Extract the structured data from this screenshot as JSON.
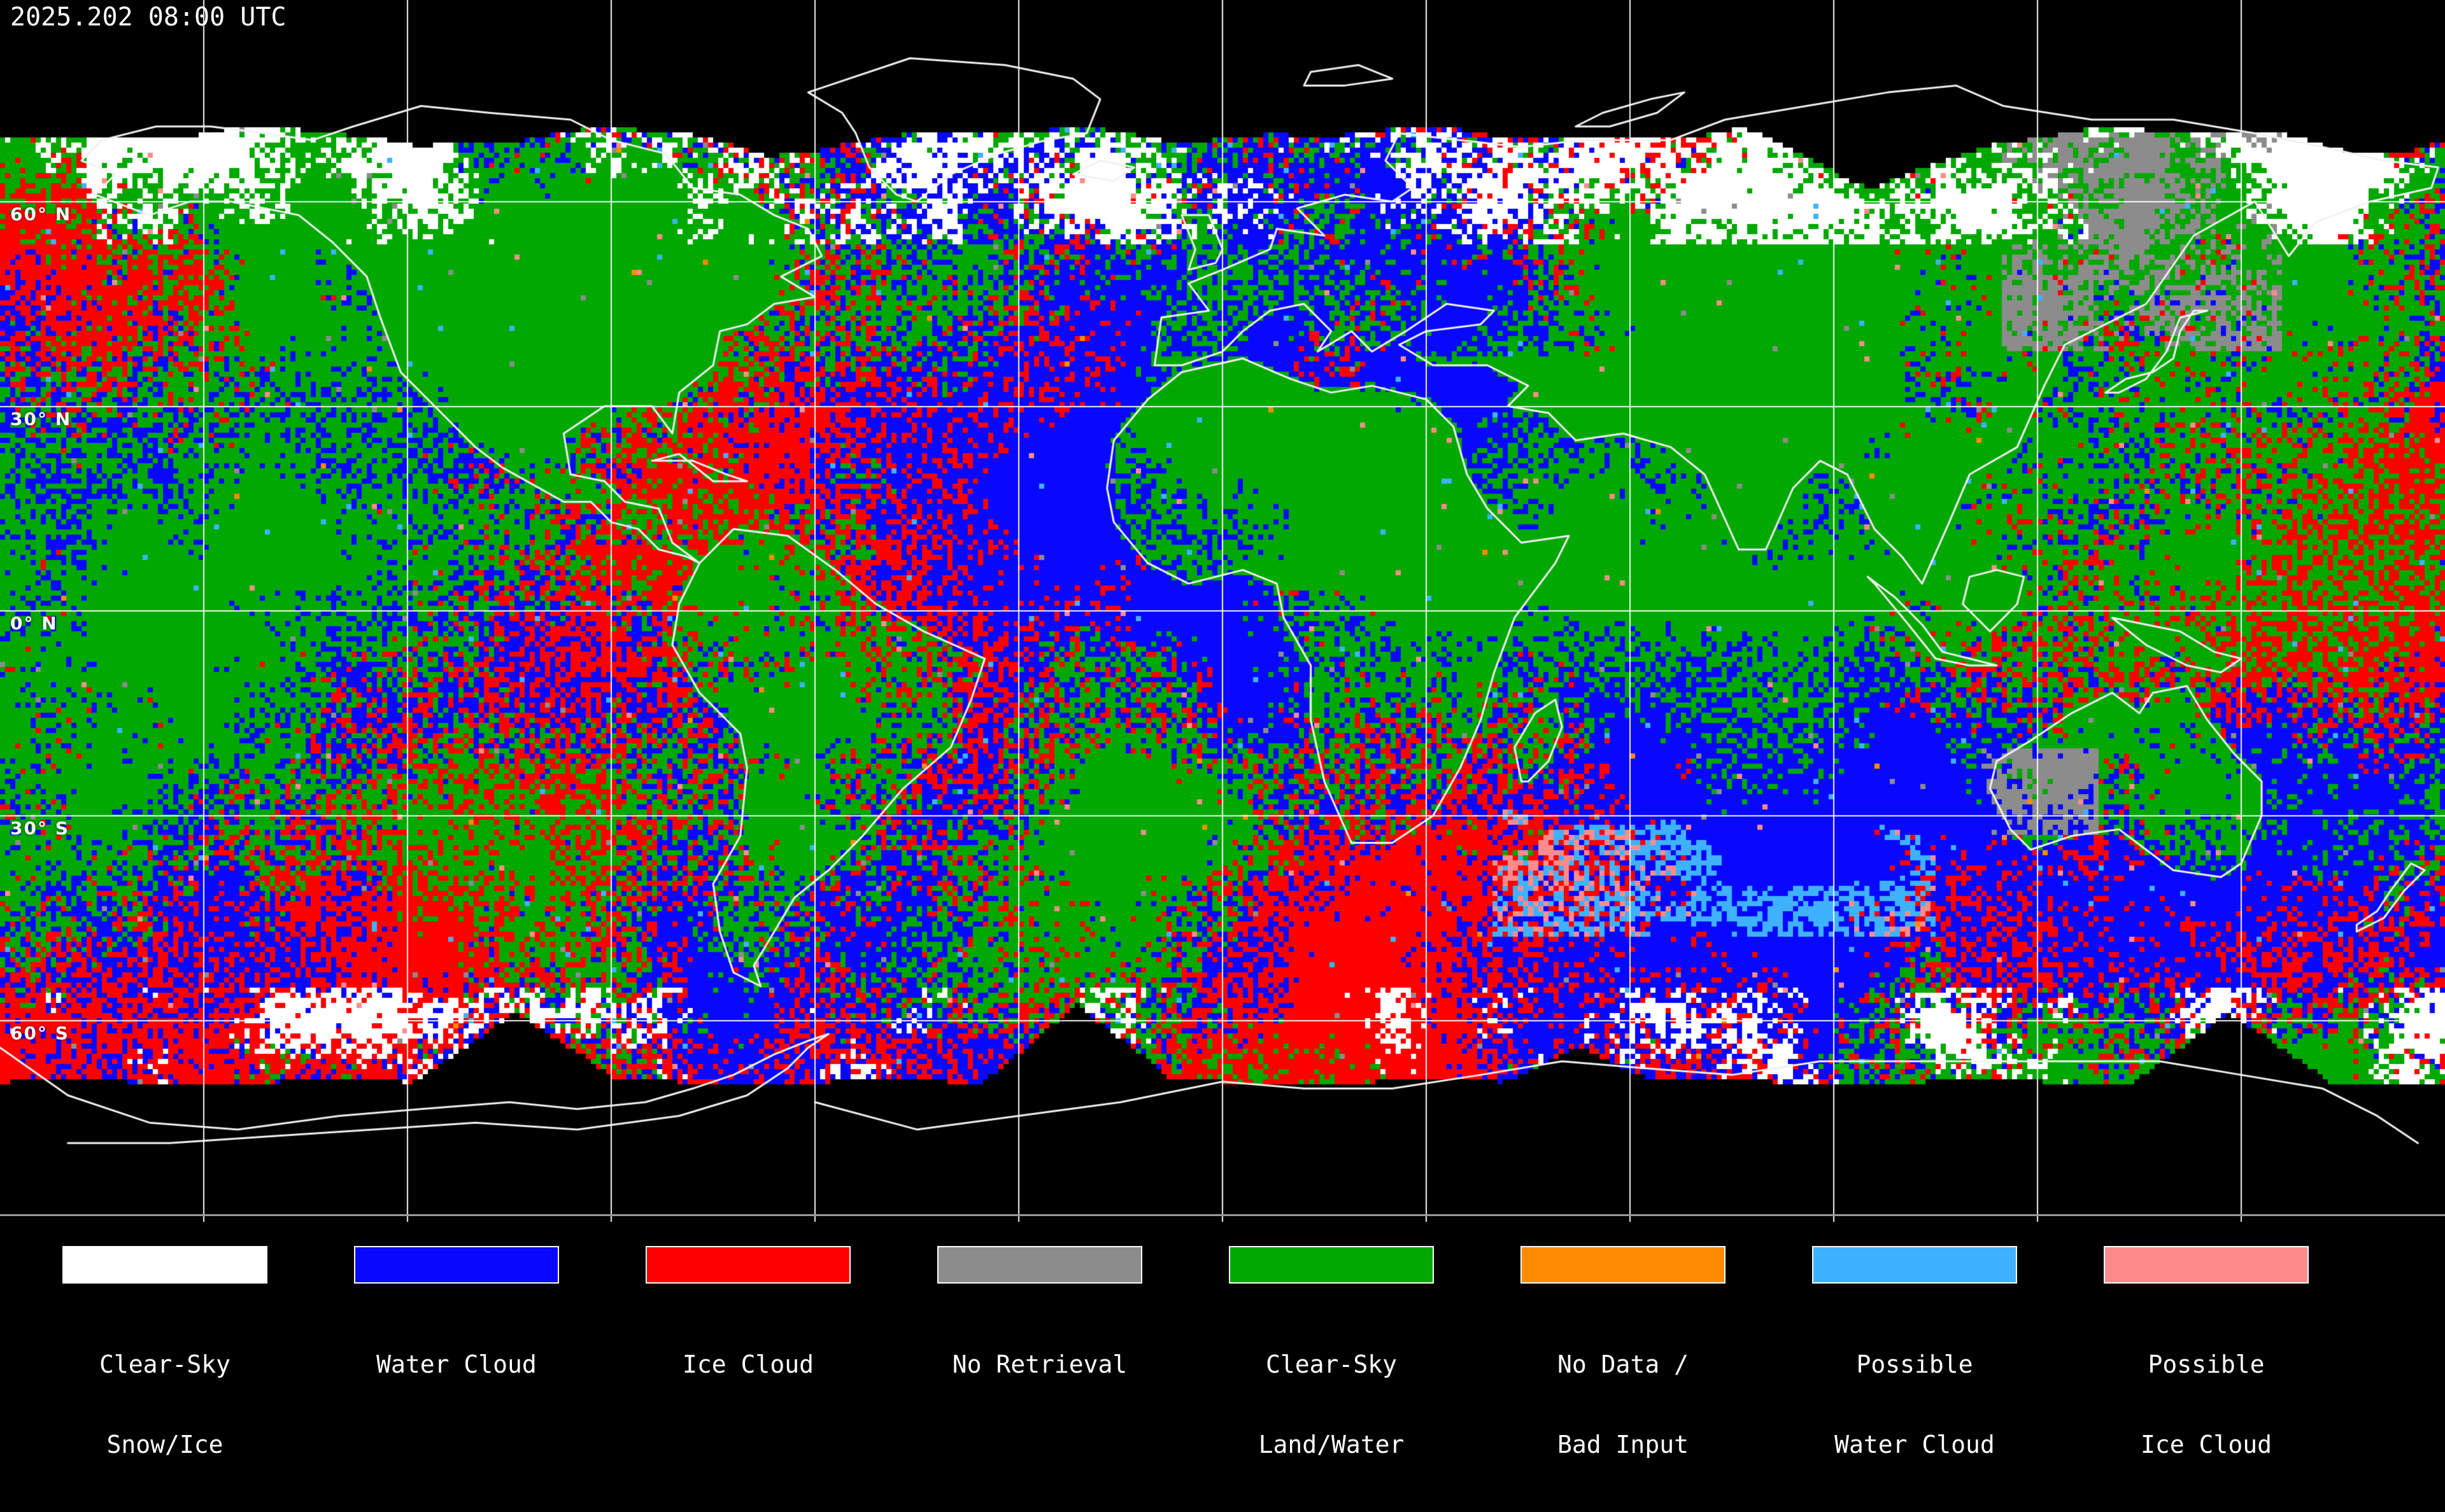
{
  "header": {
    "timestamp": "2025.202 08:00 UTC"
  },
  "map": {
    "projection": "equirectangular",
    "latitude_labels": [
      "60° N",
      "30° N",
      "0° N",
      "30° S",
      "60° S"
    ],
    "gridline_spacing_degrees": 30,
    "colors": {
      "background": "#000000",
      "coastline": "#f2f2f2",
      "grid": "#ffffff",
      "clear_sky_snow_ice": "#ffffff",
      "water_cloud": "#0808ff",
      "ice_cloud": "#ff0000",
      "no_retrieval": "#8c8c8c",
      "clear_sky_land_water": "#00a800",
      "no_data_bad_input": "#ff8c00",
      "possible_water_cloud": "#3fb2ff",
      "possible_ice_cloud": "#ff8c8c"
    }
  },
  "legend": {
    "items": [
      {
        "name": "clear-sky-snow-ice",
        "line1": "Clear-Sky",
        "line2": "Snow/Ice",
        "color": "#ffffff"
      },
      {
        "name": "water-cloud",
        "line1": "Water Cloud",
        "line2": "",
        "color": "#0808ff"
      },
      {
        "name": "ice-cloud",
        "line1": "Ice Cloud",
        "line2": "",
        "color": "#ff0000"
      },
      {
        "name": "no-retrieval",
        "line1": "No Retrieval",
        "line2": "",
        "color": "#8c8c8c"
      },
      {
        "name": "clear-sky-land-water",
        "line1": "Clear-Sky",
        "line2": "Land/Water",
        "color": "#00a800"
      },
      {
        "name": "no-data-bad-input",
        "line1": "No Data /",
        "line2": "Bad Input",
        "color": "#ff8c00"
      },
      {
        "name": "possible-water-cloud",
        "line1": "Possible",
        "line2": "Water Cloud",
        "color": "#3fb2ff"
      },
      {
        "name": "possible-ice-cloud",
        "line1": "Possible",
        "line2": "Ice Cloud",
        "color": "#ff8c8c"
      }
    ]
  }
}
